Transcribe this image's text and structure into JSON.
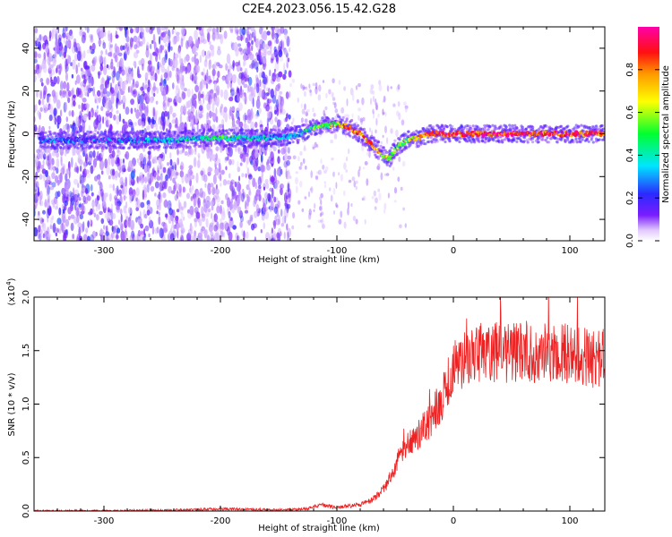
{
  "title": "C2E4.2023.056.15.42.G28",
  "chart_data": [
    {
      "type": "heatmap",
      "xlabel": "Height of straight line (km)",
      "ylabel": "Frequency (Hz)",
      "xlim": [
        -360,
        130
      ],
      "ylim": [
        -50,
        50
      ],
      "xticks": [
        -300,
        -200,
        -100,
        0,
        100
      ],
      "yticks": [
        -40,
        -20,
        0,
        20,
        40
      ],
      "colorbar": {
        "label": "Normalized spectral amplitude",
        "range": [
          0,
          1
        ],
        "ticks": [
          0.0,
          0.2,
          0.4,
          0.6,
          0.8
        ],
        "colormap": "rainbow (white-violet-blue-cyan-green-yellow-orange-red-magenta)"
      },
      "ridge": {
        "height_km": [
          -330,
          -300,
          -270,
          -240,
          -220,
          -200,
          -180,
          -160,
          -140,
          -130,
          -120,
          -110,
          -100,
          -90,
          -80,
          -70,
          -60,
          -55,
          -50,
          -45,
          -40,
          -30,
          -20,
          0,
          20,
          40,
          60,
          80,
          100,
          130
        ],
        "frequency_hz": [
          -3,
          -3,
          -3,
          -3,
          -2,
          -2,
          -2,
          -2,
          -1,
          0,
          3,
          4,
          5,
          3,
          0,
          -5,
          -10,
          -12,
          -7,
          -5,
          -3,
          -2,
          0,
          0,
          0,
          0,
          0,
          0,
          0,
          0
        ],
        "amplitude": [
          0.25,
          0.2,
          0.25,
          0.3,
          0.4,
          0.45,
          0.4,
          0.3,
          0.3,
          0.35,
          0.45,
          0.5,
          0.65,
          0.8,
          0.85,
          0.75,
          0.7,
          0.6,
          0.55,
          0.5,
          0.55,
          0.7,
          0.85,
          0.9,
          0.9,
          0.9,
          0.9,
          0.85,
          0.85,
          0.85
        ]
      }
    },
    {
      "type": "line",
      "xlabel": "Height of straight line (km)",
      "ylabel": "SNR (10 * v/v)",
      "yunit": "(x10",
      "yunit_exp": "4",
      "yunit_close": ")",
      "xlim": [
        -360,
        130
      ],
      "ylim": [
        0,
        2.0
      ],
      "xticks": [
        -300,
        -200,
        -100,
        0,
        100
      ],
      "yticks": [
        0.0,
        0.5,
        1.0,
        1.5,
        2.0
      ],
      "color": "#ee2222",
      "series": [
        {
          "x": [
            -360,
            -250,
            -200,
            -150,
            -125,
            -115,
            -100,
            -80,
            -70,
            -60,
            -55,
            -50,
            -45,
            -40,
            -35,
            -30,
            -25,
            -20,
            -15,
            -10,
            -5,
            0,
            10,
            20,
            30,
            40,
            60,
            80,
            100,
            120,
            130
          ],
          "values": [
            0.0,
            0.005,
            0.02,
            0.01,
            0.02,
            0.06,
            0.03,
            0.06,
            0.1,
            0.2,
            0.3,
            0.42,
            0.55,
            0.62,
            0.68,
            0.72,
            0.78,
            0.85,
            0.95,
            1.05,
            1.2,
            1.35,
            1.42,
            1.48,
            1.5,
            1.48,
            1.5,
            1.47,
            1.48,
            1.43,
            1.45
          ]
        }
      ]
    }
  ]
}
